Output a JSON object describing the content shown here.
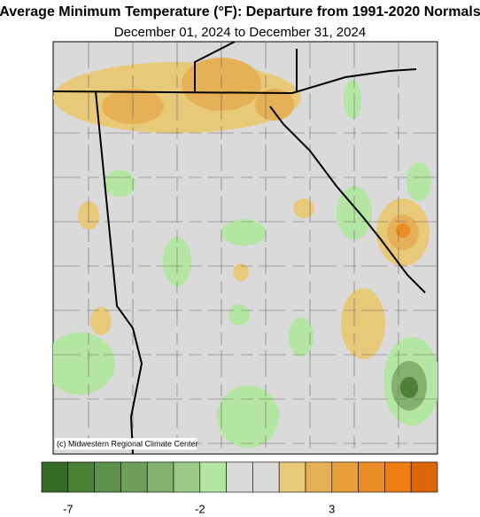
{
  "header": {
    "title": "Average Minimum Temperature (°F): Departure from 1991-2020 Normals",
    "subtitle": "December 01, 2024 to December 31, 2024"
  },
  "map": {
    "credit": "(c) Midwestern Regional Climate Center"
  },
  "colorbar": {
    "colors": [
      "#356b27",
      "#4b8238",
      "#5c9149",
      "#6e9f5a",
      "#82b26d",
      "#9bc987",
      "#b3e6a3",
      "#dadada",
      "#dadada",
      "#e8c97a",
      "#e6b156",
      "#e99e3c",
      "#ec8c26",
      "#ee7d12",
      "#db6606"
    ],
    "lim": [
      -8,
      7
    ],
    "ticks": [
      -7,
      -2,
      3
    ]
  }
}
